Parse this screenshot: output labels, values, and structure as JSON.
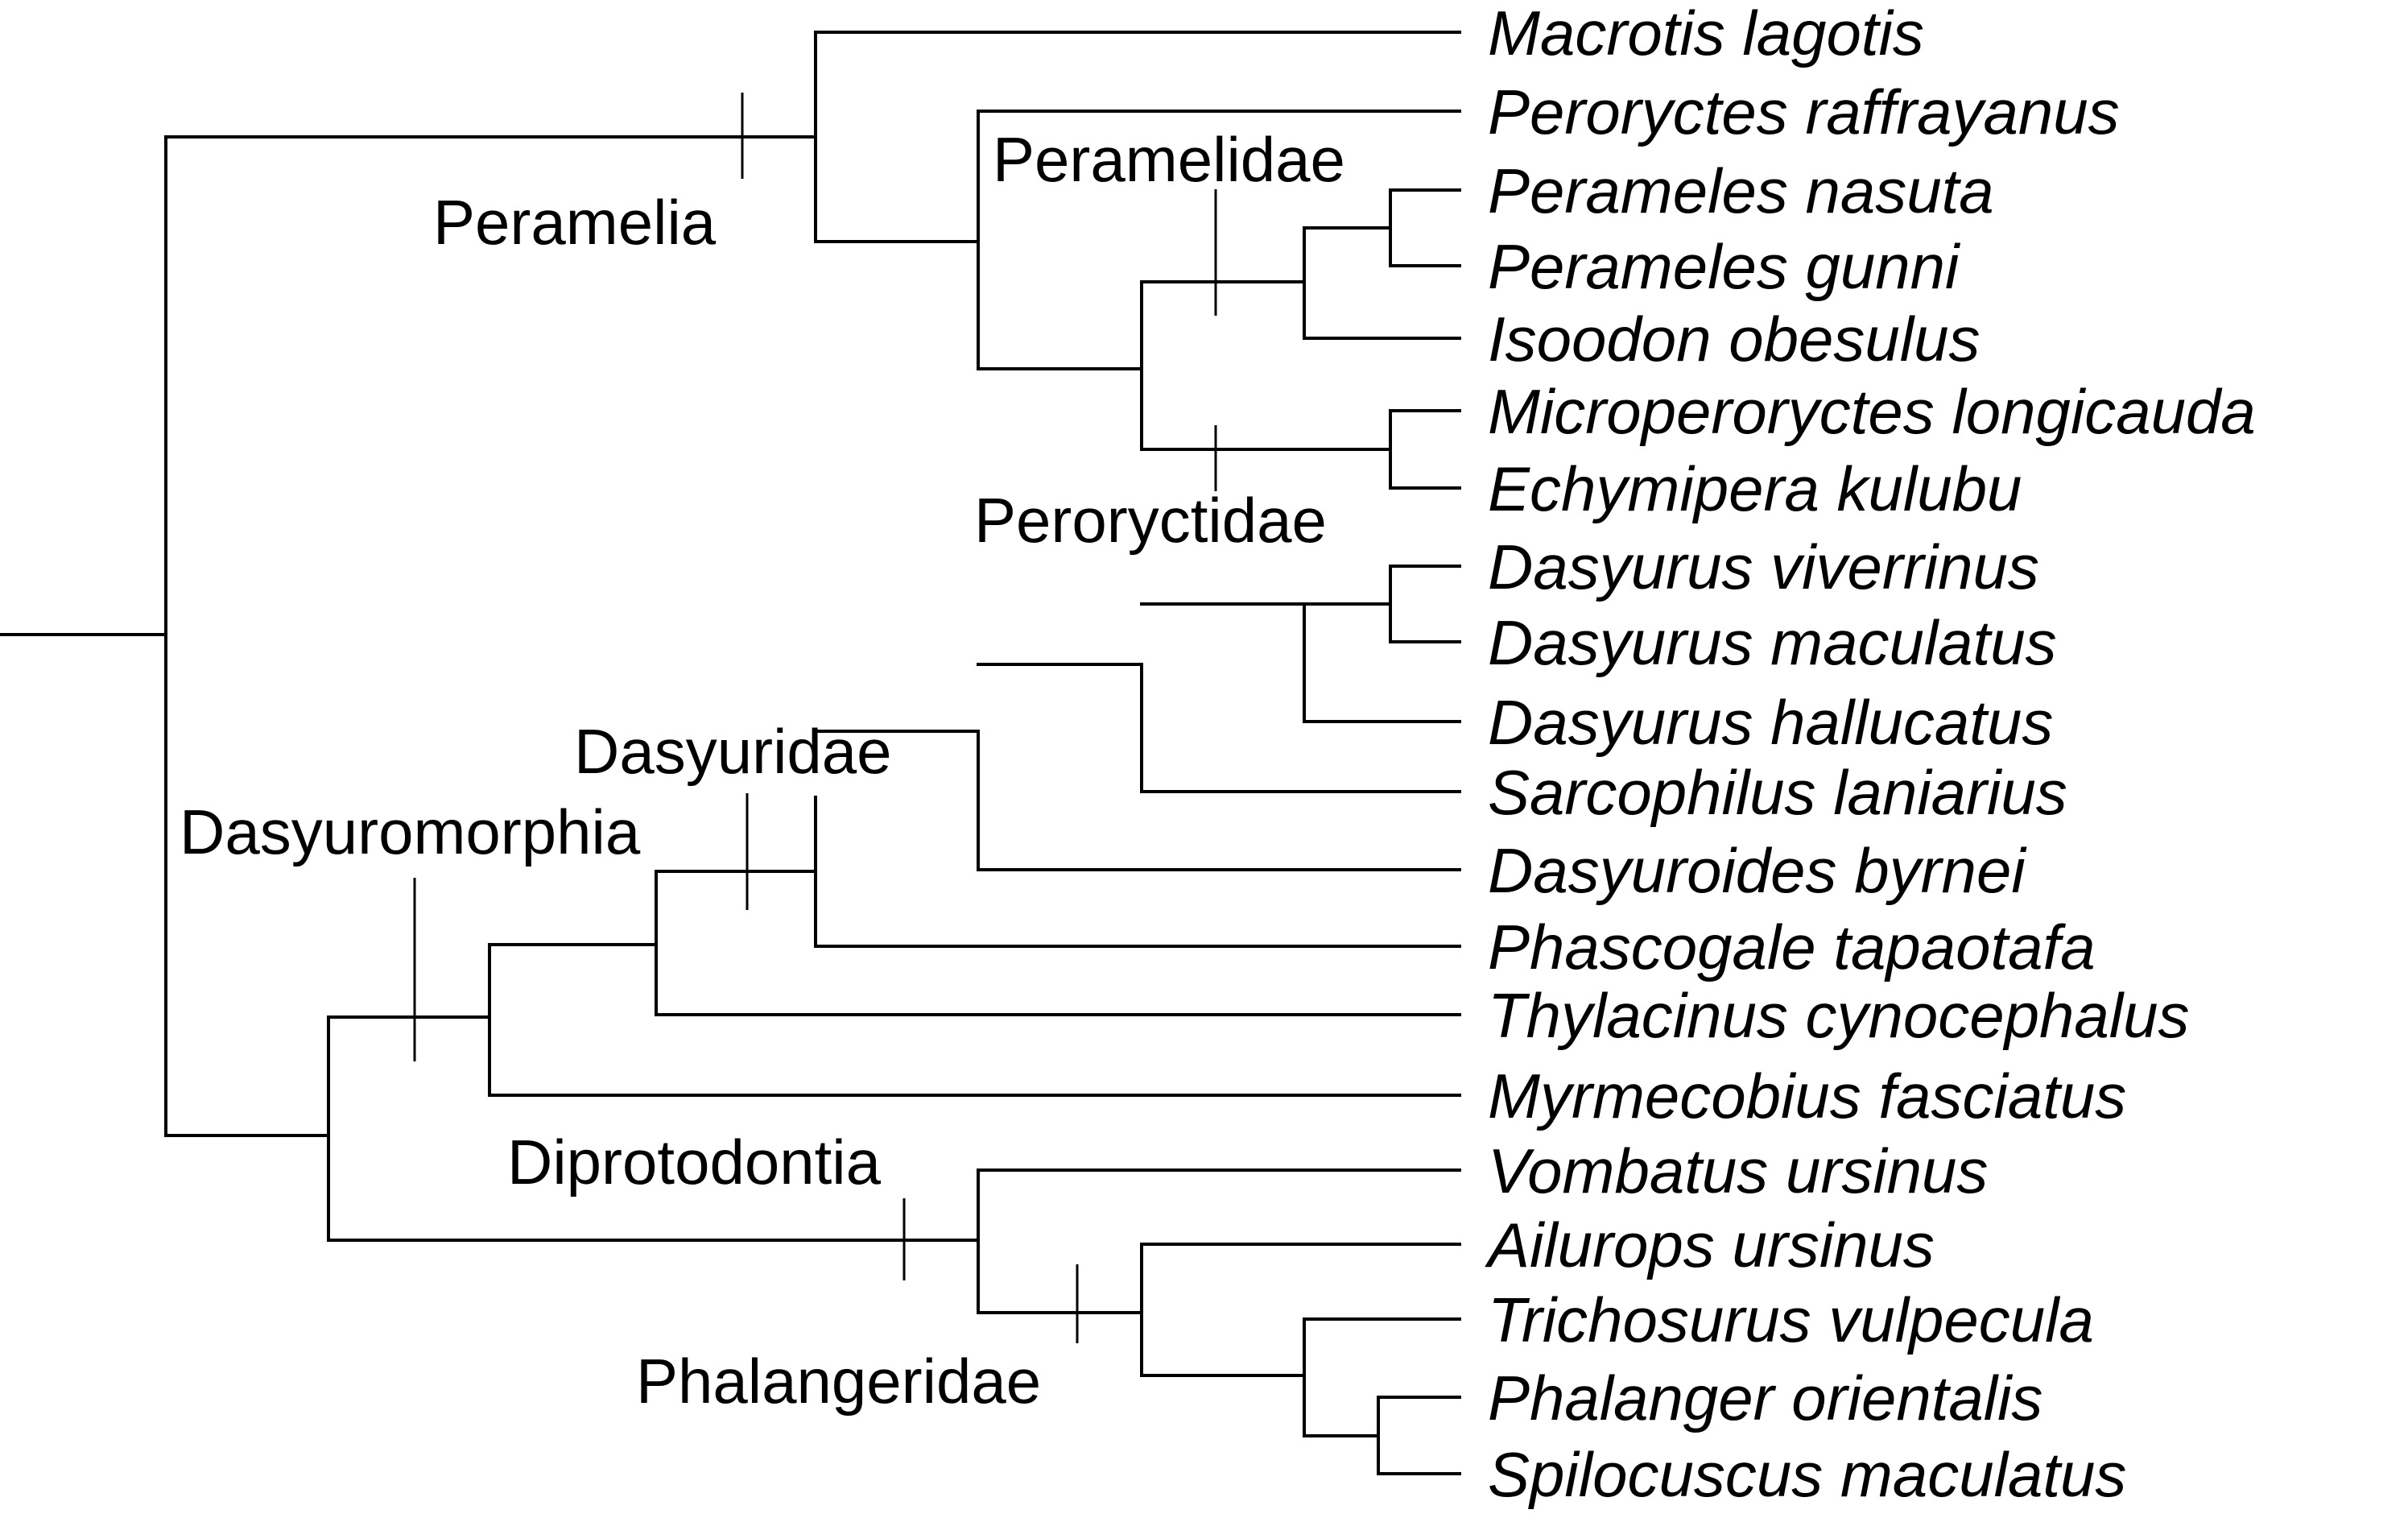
{
  "taxa": [
    "Macrotis lagotis",
    "Peroryctes raffrayanus",
    "Perameles nasuta",
    "Perameles gunni",
    "Isoodon obesulus",
    "Microperoryctes longicauda",
    "Echymipera kulubu",
    "Dasyurus viverrinus",
    "Dasyurus maculatus",
    "Dasyurus hallucatus",
    "Sarcophilus laniarius",
    "Dasyuroides byrnei",
    "Phascogale tapaotafa",
    "Thylacinus cynocephalus",
    "Myrmecobius fasciatus",
    "Vombatus ursinus",
    "Ailurops ursinus",
    "Trichosurus vulpecula",
    "Phalanger orientalis",
    "Spilocuscus maculatus"
  ],
  "clades": {
    "peramelia": "Peramelia",
    "peramelidae": "Peramelidae",
    "peroryctidae": "Peroryctidae",
    "dasyuridae": "Dasyuridae",
    "dasyuromorphia": "Dasyuromorphia",
    "diprotodontia": "Diprotodontia",
    "phalangeridae": "Phalangeridae"
  }
}
